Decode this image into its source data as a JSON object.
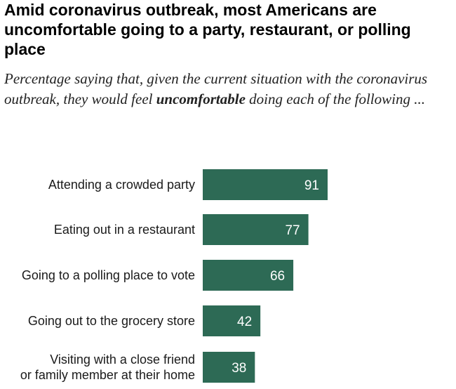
{
  "chart_data": {
    "type": "bar",
    "orientation": "horizontal",
    "title": "Amid coronavirus outbreak, most Americans are uncomfortable going to a party, restaurant, or polling place",
    "subtitle": {
      "before": "Percentage saying that, given the current situation with the coronavirus outbreak, they would feel ",
      "emphasis": "uncomfortable",
      "after": " doing each of the following ..."
    },
    "categories": [
      [
        "Attending a crowded party"
      ],
      [
        "Eating out in a restaurant"
      ],
      [
        "Going to a polling place to vote"
      ],
      [
        "Going out to the grocery store"
      ],
      [
        "Visiting with a close friend",
        "or family member at their home"
      ]
    ],
    "values": [
      91,
      77,
      66,
      42,
      38
    ],
    "xlim": [
      0,
      100
    ],
    "bar_color": "#2d6a55",
    "value_label_color": "#ffffff"
  }
}
